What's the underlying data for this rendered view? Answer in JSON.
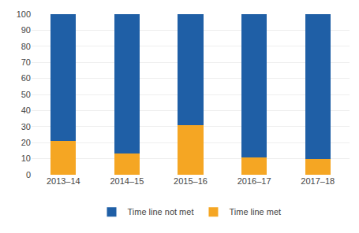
{
  "chart_data": {
    "type": "bar",
    "stacked": true,
    "categories": [
      "2013–14",
      "2014–15",
      "2015–16",
      "2016–17",
      "2017–18"
    ],
    "series": [
      {
        "name": "Time line met",
        "color": "#f5a623",
        "values": [
          21,
          13,
          31,
          11,
          10
        ]
      },
      {
        "name": "Time line not met",
        "color": "#1f5fa6",
        "values": [
          79,
          87,
          69,
          89,
          90
        ]
      }
    ],
    "ylim": [
      0,
      100
    ],
    "yticks": [
      0,
      10,
      20,
      30,
      40,
      50,
      60,
      70,
      80,
      90,
      100
    ],
    "grid": true,
    "legend": "bottom"
  }
}
